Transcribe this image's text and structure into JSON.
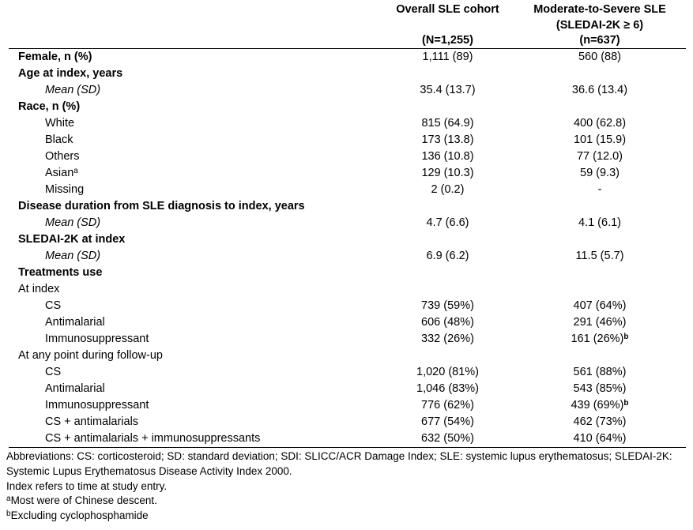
{
  "table": {
    "columns": [
      {
        "name": "overall",
        "lines": [
          "Overall SLE cohort",
          "(N=1,255)"
        ]
      },
      {
        "name": "moderate_severe",
        "lines": [
          "Moderate-to-Severe SLE",
          "(SLEDAI-2K ≥ 6)",
          "(n=637)"
        ]
      }
    ],
    "rows": [
      {
        "style": "bold",
        "indent": 0,
        "label": "Female, n (%)",
        "col1": "1,111 (89)",
        "col2": "560 (88)"
      },
      {
        "style": "bold",
        "indent": 0,
        "label": "Age at index, years",
        "col1": "",
        "col2": ""
      },
      {
        "style": "italic",
        "indent": 1,
        "label": "Mean (SD)",
        "col1": "35.4 (13.7)",
        "col2": "36.6 (13.4)"
      },
      {
        "style": "bold",
        "indent": 0,
        "label": "Race, n (%)",
        "col1": "",
        "col2": ""
      },
      {
        "style": "plain",
        "indent": 1,
        "label": "White",
        "col1": "815 (64.9)",
        "col2": "400 (62.8)"
      },
      {
        "style": "plain",
        "indent": 1,
        "label": "Black",
        "col1": "173 (13.8)",
        "col2": "101 (15.9)"
      },
      {
        "style": "plain",
        "indent": 1,
        "label": "Others",
        "col1": "136 (10.8)",
        "col2": "77 (12.0)"
      },
      {
        "style": "plain",
        "indent": 1,
        "label": "Asian",
        "label_sup": "a",
        "col1": "129 (10.3)",
        "col2": "59 (9.3)"
      },
      {
        "style": "plain",
        "indent": 1,
        "label": "Missing",
        "col1": "2 (0.2)",
        "col2": "-"
      },
      {
        "style": "bold",
        "indent": 0,
        "label": "Disease duration from SLE diagnosis to index, years",
        "col1": "",
        "col2": ""
      },
      {
        "style": "italic",
        "indent": 1,
        "label": "Mean (SD)",
        "col1": "4.7 (6.6)",
        "col2": "4.1 (6.1)"
      },
      {
        "style": "bold",
        "indent": 0,
        "label": "SLEDAI-2K at index",
        "col1": "",
        "col2": ""
      },
      {
        "style": "italic",
        "indent": 1,
        "label": "Mean (SD)",
        "col1": "6.9 (6.2)",
        "col2": "11.5 (5.7)"
      },
      {
        "style": "bold",
        "indent": 0,
        "label": "Treatments use",
        "col1": "",
        "col2": ""
      },
      {
        "style": "plain",
        "indent": 0,
        "label": "At index",
        "col1": "",
        "col2": ""
      },
      {
        "style": "plain",
        "indent": 1,
        "label": "CS",
        "col1": "739 (59%)",
        "col2": "407 (64%)"
      },
      {
        "style": "plain",
        "indent": 1,
        "label": "Antimalarial",
        "col1": "606 (48%)",
        "col2": "291 (46%)"
      },
      {
        "style": "plain",
        "indent": 1,
        "label": "Immunosuppressant",
        "col1": "332 (26%)",
        "col2": "161 (26%)",
        "col2_sup": "b"
      },
      {
        "style": "plain",
        "indent": 0,
        "label": "At any point during follow-up",
        "col1": "",
        "col2": ""
      },
      {
        "style": "plain",
        "indent": 1,
        "label": "CS",
        "col1": "1,020 (81%)",
        "col2": "561 (88%)"
      },
      {
        "style": "plain",
        "indent": 1,
        "label": "Antimalarial",
        "col1": "1,046 (83%)",
        "col2": "543 (85%)"
      },
      {
        "style": "plain",
        "indent": 1,
        "label": "Immunosuppressant",
        "col1": "776 (62%)",
        "col2": "439 (69%)",
        "col2_sup": "b"
      },
      {
        "style": "plain",
        "indent": 1,
        "label": "CS + antimalarials",
        "col1": "677 (54%)",
        "col2": "462 (73%)"
      },
      {
        "style": "plain",
        "indent": 1,
        "label": "CS + antimalarials + immunosuppressants",
        "col1": "632 (50%)",
        "col2": "410 (64%)"
      }
    ]
  },
  "footnotes": {
    "lines": [
      {
        "sup": "",
        "text": "Abbreviations: CS: corticosteroid; SD: standard deviation; SDI: SLICC/ACR Damage Index; SLE: systemic lupus erythematosus; SLEDAI-2K:"
      },
      {
        "sup": "",
        "text": "Systemic Lupus Erythematosus Disease Activity Index 2000."
      },
      {
        "sup": "",
        "text": "Index refers to time at study entry."
      },
      {
        "sup": "a",
        "text": "Most were of Chinese descent."
      },
      {
        "sup": "b",
        "text": "Excluding cyclophosphamide"
      }
    ]
  },
  "colors": {
    "text": "#000000",
    "background": "#ffffff",
    "rule": "#000000"
  }
}
